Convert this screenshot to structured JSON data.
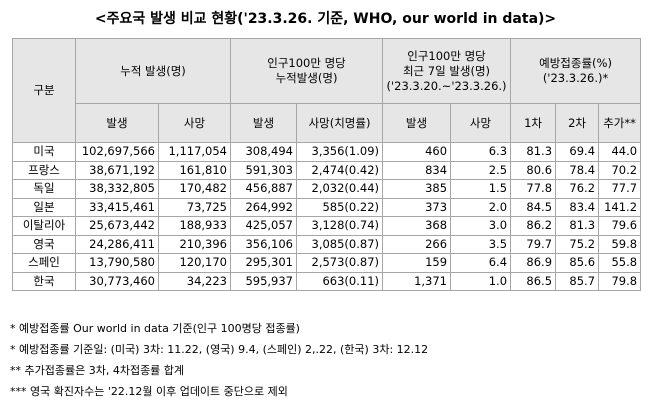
{
  "title": "<주요국 발생 비교 현황('23.3.26. 기준, WHO, our world in data)>",
  "table": {
    "header": [
      [
        "구분"
      ],
      [
        "누적 발생(명)"
      ],
      [
        "인구100만 명당",
        "누적발생(명)"
      ],
      [
        "인구100만 명당",
        "최근 7일 발생(명)",
        "('23.3.20.~'23.3.26.)"
      ],
      [
        "예방접종률(%)",
        "('23.3.26.)*"
      ]
    ],
    "subheader": [
      "발생",
      "사망",
      "발생",
      "사망(치명률)",
      "발생",
      "사망",
      "1차",
      "2차",
      "추가**"
    ],
    "rows": [
      [
        "미국",
        "102,697,566",
        "1,117,054",
        "308,494",
        "3,356(1.09)",
        "460",
        "6.3",
        "81.3",
        "69.4",
        "44.0"
      ],
      [
        "프랑스",
        "38,671,192",
        "161,810",
        "591,303",
        "2,474(0.42)",
        "834",
        "2.5",
        "80.6",
        "78.4",
        "70.2"
      ],
      [
        "독일",
        "38,332,805",
        "170,482",
        "456,887",
        "2,032(0.44)",
        "385",
        "1.5",
        "77.8",
        "76.2",
        "77.7"
      ],
      [
        "일본",
        "33,415,461",
        "73,725",
        "264,992",
        "585(0.22)",
        "373",
        "2.0",
        "84.5",
        "83.4",
        "141.2"
      ],
      [
        "이탈리아",
        "25,673,442",
        "188,933",
        "425,057",
        "3,128(0.74)",
        "368",
        "3.0",
        "86.2",
        "81.3",
        "79.6"
      ],
      [
        "영국",
        "24,286,411",
        "210,396",
        "356,106",
        "3,085(0.87)",
        "266",
        "3.5",
        "79.7",
        "75.2",
        "59.8"
      ],
      [
        "스페인",
        "13,790,580",
        "120,170",
        "295,301",
        "2,573(0.87)",
        "159",
        "6.4",
        "86.9",
        "85.6",
        "55.8"
      ],
      [
        "한국",
        "30,773,460",
        "34,223",
        "595,937",
        "663(0.11)",
        "1,371",
        "1.0",
        "86.5",
        "85.7",
        "79.8"
      ]
    ]
  },
  "notes": [
    "* 예방접종률 Our world in data 기준(인구 100명당 접종률)",
    "* 예방접종률 기준일: (미국) 3차: 11.22, (영국) 9.4, (스페인) 2,.22, (한국) 3차: 12.12",
    "** 추가접종률은 3차, 4차접종률 합계",
    "*** 영국 확진자수는 '22.12월 이후 업데이트 중단으로 제외"
  ]
}
